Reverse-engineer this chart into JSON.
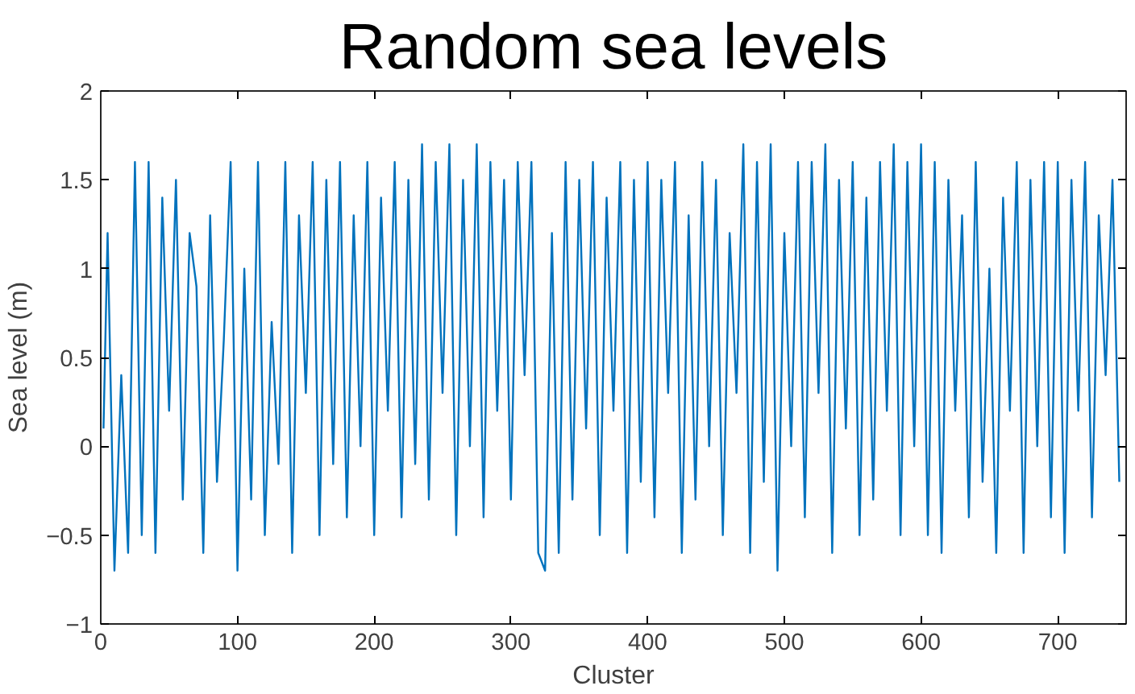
{
  "chart_data": {
    "type": "line",
    "title": "Random sea levels",
    "xlabel": "Cluster",
    "ylabel": "Sea level (m)",
    "xlim": [
      0,
      750
    ],
    "ylim": [
      -1,
      2
    ],
    "xticks": [
      0,
      100,
      200,
      300,
      400,
      500,
      600,
      700
    ],
    "yticks": [
      -1,
      -0.5,
      0,
      0.5,
      1,
      1.5,
      2
    ],
    "grid": false,
    "marker": "none",
    "line_style": "solid",
    "x": [
      2,
      5,
      10,
      15,
      20,
      25,
      30,
      35,
      40,
      45,
      50,
      55,
      60,
      65,
      70,
      75,
      80,
      85,
      90,
      95,
      100,
      105,
      110,
      115,
      120,
      125,
      130,
      135,
      140,
      145,
      150,
      155,
      160,
      165,
      170,
      175,
      180,
      185,
      190,
      195,
      200,
      205,
      210,
      215,
      220,
      225,
      230,
      235,
      240,
      245,
      250,
      255,
      260,
      265,
      270,
      275,
      280,
      285,
      290,
      295,
      300,
      305,
      310,
      315,
      320,
      325,
      330,
      335,
      340,
      345,
      350,
      355,
      360,
      365,
      370,
      375,
      380,
      385,
      390,
      395,
      400,
      405,
      410,
      415,
      420,
      425,
      430,
      435,
      440,
      445,
      450,
      455,
      460,
      465,
      470,
      475,
      480,
      485,
      490,
      495,
      500,
      505,
      510,
      515,
      520,
      525,
      530,
      535,
      540,
      545,
      550,
      555,
      560,
      565,
      570,
      575,
      580,
      585,
      590,
      595,
      600,
      605,
      610,
      615,
      620,
      625,
      630,
      635,
      640,
      645,
      650,
      655,
      660,
      665,
      670,
      675,
      680,
      685,
      690,
      695,
      700,
      705,
      710,
      715,
      720,
      725,
      730,
      735,
      740,
      745
    ],
    "series": [
      {
        "color": "#0072bd",
        "values": [
          0.1,
          1.2,
          -0.7,
          0.4,
          -0.6,
          1.6,
          -0.5,
          1.6,
          -0.6,
          1.4,
          0.2,
          1.5,
          -0.3,
          1.2,
          0.9,
          -0.6,
          1.3,
          -0.2,
          0.6,
          1.6,
          -0.7,
          1.0,
          -0.3,
          1.6,
          -0.5,
          0.7,
          -0.1,
          1.6,
          -0.6,
          1.3,
          0.3,
          1.6,
          -0.5,
          1.5,
          -0.1,
          1.6,
          -0.4,
          1.3,
          0.0,
          1.6,
          -0.5,
          1.4,
          0.2,
          1.6,
          -0.4,
          1.5,
          -0.1,
          1.7,
          -0.3,
          1.6,
          0.3,
          1.7,
          -0.5,
          1.5,
          0.0,
          1.7,
          -0.4,
          1.6,
          0.2,
          1.5,
          -0.3,
          1.6,
          0.4,
          1.6,
          -0.6,
          -0.7,
          1.2,
          -0.6,
          1.6,
          -0.3,
          1.5,
          0.1,
          1.6,
          -0.5,
          1.4,
          0.2,
          1.6,
          -0.6,
          1.5,
          -0.2,
          1.6,
          -0.4,
          1.5,
          0.3,
          1.6,
          -0.6,
          1.3,
          -0.3,
          1.6,
          0.0,
          1.5,
          -0.5,
          1.2,
          0.3,
          1.7,
          -0.6,
          1.6,
          -0.2,
          1.7,
          -0.7,
          1.2,
          0.0,
          1.6,
          -0.4,
          1.6,
          0.3,
          1.7,
          -0.6,
          1.5,
          0.1,
          1.6,
          -0.5,
          1.4,
          -0.3,
          1.6,
          0.2,
          1.7,
          -0.5,
          1.6,
          0.0,
          1.7,
          -0.5,
          1.6,
          -0.6,
          1.5,
          0.2,
          1.3,
          -0.4,
          1.6,
          -0.2,
          1.0,
          -0.6,
          1.4,
          0.2,
          1.6,
          -0.6,
          1.5,
          0.0,
          1.6,
          -0.4,
          1.6,
          -0.6,
          1.5,
          0.2,
          1.6,
          -0.4,
          1.3,
          0.4,
          1.5,
          -0.2
        ]
      }
    ]
  }
}
